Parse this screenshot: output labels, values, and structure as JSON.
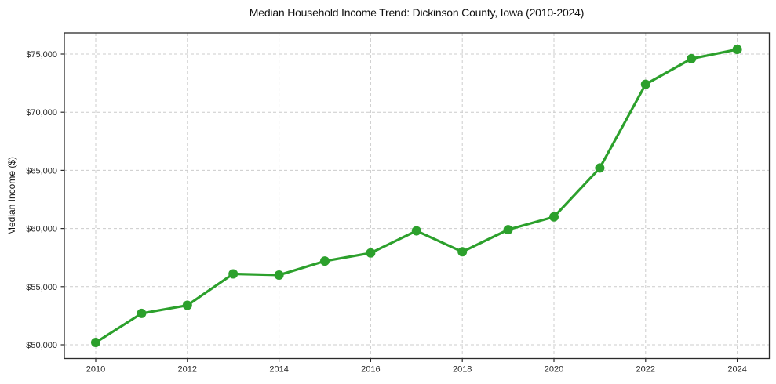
{
  "figure": {
    "background": "#ffffff"
  },
  "colors": {
    "line": "#2ca02c",
    "marker": "#2ca02c",
    "grid": "#cccccc",
    "spine": "#2b2b2b",
    "text": "#262626",
    "title_text": "#111111"
  },
  "chart_data": {
    "type": "line",
    "title": "Median Household Income Trend: Dickinson County, Iowa (2010-2024)",
    "xlabel": "",
    "ylabel": "Median Income ($)",
    "x": [
      2010,
      2011,
      2012,
      2013,
      2014,
      2015,
      2016,
      2017,
      2018,
      2019,
      2020,
      2021,
      2022,
      2023,
      2024
    ],
    "series": [
      {
        "name": "Median Household Income",
        "color": "#2ca02c",
        "values": [
          50200,
          52700,
          53400,
          56100,
          56000,
          57200,
          57900,
          59800,
          58000,
          59900,
          61000,
          65200,
          72400,
          74600,
          75400
        ]
      }
    ],
    "x_ticks": [
      2010,
      2012,
      2014,
      2016,
      2018,
      2020,
      2022,
      2024
    ],
    "x_tick_labels": [
      "2010",
      "2012",
      "2014",
      "2016",
      "2018",
      "2020",
      "2022",
      "2024"
    ],
    "y_ticks": [
      50000,
      55000,
      60000,
      65000,
      70000,
      75000
    ],
    "y_tick_labels": [
      "$50,000",
      "$55,000",
      "$60,000",
      "$65,000",
      "$70,000",
      "$75,000"
    ],
    "xlim": [
      2009.3,
      2024.7
    ],
    "ylim": [
      48800,
      76800
    ],
    "grid": true,
    "grid_style": "dashed",
    "legend_position": "none",
    "marker": "circle"
  }
}
